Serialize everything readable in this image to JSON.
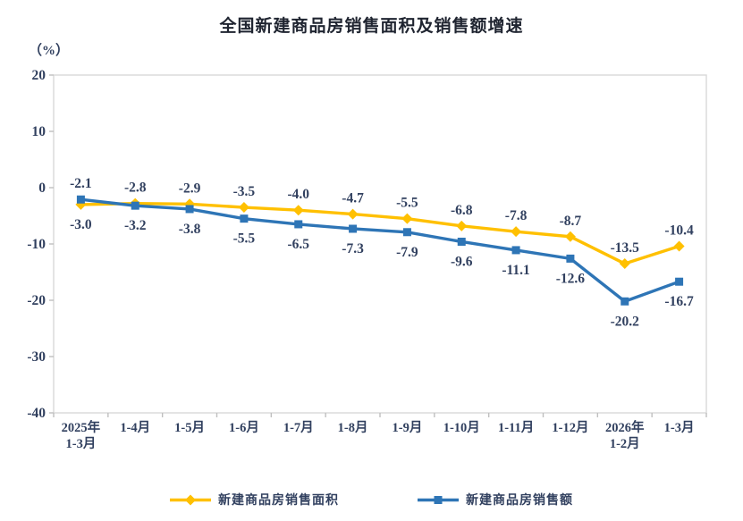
{
  "chart_data": {
    "type": "line",
    "title": "全国新建商品房销售面积及销售额增速",
    "unit_label": "（%）",
    "categories": [
      "2025年\n1-3月",
      "1-4月",
      "1-5月",
      "1-6月",
      "1-7月",
      "1-8月",
      "1-9月",
      "1-10月",
      "1-11月",
      "1-12月",
      "2026年\n1-2月",
      "1-3月"
    ],
    "series": [
      {
        "name": "新建商品房销售面积",
        "color": "#FFC000",
        "marker": "diamond",
        "values": [
          -3.0,
          -2.8,
          -2.9,
          -3.5,
          -4.0,
          -4.7,
          -5.5,
          -6.8,
          -7.8,
          -8.7,
          -13.5,
          -10.4
        ]
      },
      {
        "name": "新建商品房销售额",
        "color": "#2E75B6",
        "marker": "square",
        "values": [
          -2.1,
          -3.2,
          -3.8,
          -5.5,
          -6.5,
          -7.3,
          -7.9,
          -9.6,
          -11.1,
          -12.6,
          -20.2,
          -16.7
        ]
      }
    ],
    "ylim": [
      -40,
      20
    ],
    "yticks": [
      20,
      10,
      0,
      -10,
      -20,
      -30,
      -40
    ],
    "grid": false,
    "legend_position": "bottom",
    "colors": {
      "label_text": "#31405f",
      "plot_border": "#d9d9d9",
      "tick": "#bfbfbf"
    }
  }
}
